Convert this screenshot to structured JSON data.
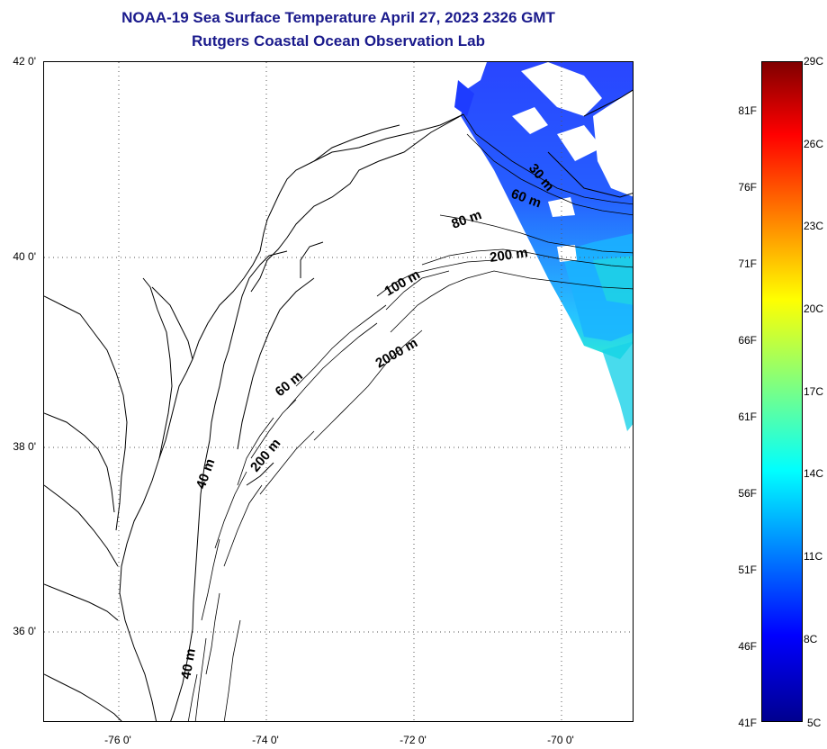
{
  "title": {
    "line1": "NOAA-19 Sea Surface Temperature April 27, 2023 2326 GMT",
    "line2": "Rutgers Coastal Ocean Observation Lab"
  },
  "lat_labels": [
    "42 0'",
    "40 0'",
    "38 0'",
    "36 0'"
  ],
  "lon_labels": [
    "-76 0'",
    "-74 0'",
    "-72 0'",
    "-70 0'"
  ],
  "contour_labels": [
    "30 m",
    "60 m",
    "80 m",
    "200 m",
    "100 m",
    "2000 m",
    "60 m",
    "200 m",
    "40 m",
    "40 m"
  ],
  "colorbar": {
    "fahrenheit": [
      "81F",
      "76F",
      "71F",
      "66F",
      "61F",
      "56F",
      "51F",
      "46F",
      "41F"
    ],
    "celsius": [
      "29C",
      "26C",
      "23C",
      "20C",
      "17C",
      "14C",
      "11C",
      "8C",
      "5C"
    ],
    "colormap": "jet",
    "min_c": 5,
    "max_c": 29
  },
  "colors": {
    "title": "#1a1a8c",
    "sst_cold": "#1e3cff",
    "sst_mid": "#1aa0ff",
    "sst_warm": "#20e6d6"
  }
}
